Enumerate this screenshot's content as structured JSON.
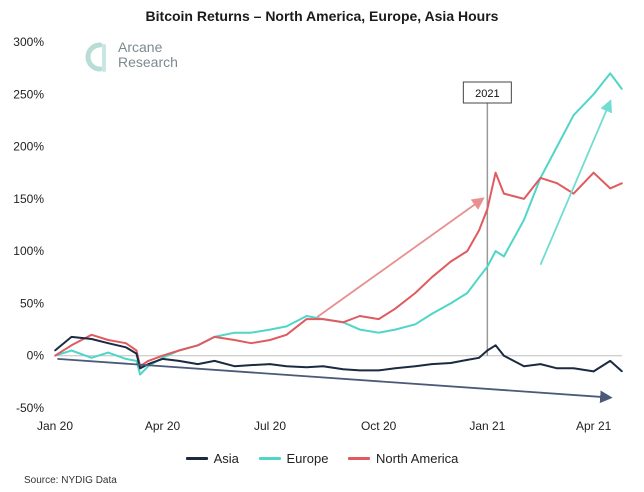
{
  "title": "Bitcoin Returns – North America, Europe, Asia Hours",
  "logo": {
    "line1": "Arcane",
    "line2": "Research"
  },
  "annotation": "2021",
  "source": "Source: NYDIG Data",
  "colors": {
    "asia": "#1b2a41",
    "europe": "#4fd6c8",
    "north_america": "#e05a5f",
    "axis": "#bfbfbf",
    "arrow_gray": "#4a5a78",
    "arrow_red": "#e89090",
    "arrow_teal": "#70dcd2"
  },
  "chart_data": {
    "type": "line",
    "title": "Bitcoin Returns – North America, Europe, Asia Hours",
    "xlabel": "",
    "ylabel": "",
    "ylim": [
      -50,
      300
    ],
    "xlim": [
      "2020-01-01",
      "2021-04-25"
    ],
    "yticks": [
      "300%",
      "250%",
      "200%",
      "150%",
      "100%",
      "50%",
      "0%",
      "-50%"
    ],
    "xticks": [
      "Jan 20",
      "Apr 20",
      "Jul 20",
      "Oct 20",
      "Jan 21",
      "Apr 21"
    ],
    "legend": "bottom",
    "grid": false,
    "series": [
      {
        "name": "Asia",
        "color": "#1b2a41",
        "x": [
          "2020-01-01",
          "2020-01-15",
          "2020-02-01",
          "2020-02-15",
          "2020-03-01",
          "2020-03-10",
          "2020-03-13",
          "2020-03-20",
          "2020-04-01",
          "2020-04-15",
          "2020-05-01",
          "2020-05-15",
          "2020-06-01",
          "2020-06-15",
          "2020-07-01",
          "2020-07-15",
          "2020-08-01",
          "2020-08-15",
          "2020-09-01",
          "2020-09-15",
          "2020-10-01",
          "2020-10-15",
          "2020-11-01",
          "2020-11-15",
          "2020-12-01",
          "2020-12-15",
          "2020-12-25",
          "2021-01-01",
          "2021-01-08",
          "2021-01-15",
          "2021-02-01",
          "2021-02-15",
          "2021-03-01",
          "2021-03-15",
          "2021-04-01",
          "2021-04-15",
          "2021-04-25"
        ],
        "values": [
          5,
          18,
          16,
          12,
          8,
          2,
          -12,
          -8,
          -3,
          -5,
          -8,
          -5,
          -10,
          -9,
          -8,
          -10,
          -11,
          -10,
          -13,
          -14,
          -14,
          -12,
          -10,
          -8,
          -7,
          -4,
          -2,
          5,
          10,
          0,
          -10,
          -8,
          -12,
          -12,
          -15,
          -5,
          -15
        ]
      },
      {
        "name": "Europe",
        "color": "#4fd6c8",
        "x": [
          "2020-01-01",
          "2020-01-15",
          "2020-02-01",
          "2020-02-15",
          "2020-03-01",
          "2020-03-10",
          "2020-03-13",
          "2020-03-20",
          "2020-04-01",
          "2020-04-15",
          "2020-05-01",
          "2020-05-15",
          "2020-06-01",
          "2020-06-15",
          "2020-07-01",
          "2020-07-15",
          "2020-08-01",
          "2020-08-15",
          "2020-09-01",
          "2020-09-15",
          "2020-10-01",
          "2020-10-15",
          "2020-11-01",
          "2020-11-15",
          "2020-12-01",
          "2020-12-15",
          "2020-12-25",
          "2021-01-01",
          "2021-01-08",
          "2021-01-15",
          "2021-02-01",
          "2021-02-15",
          "2021-03-01",
          "2021-03-15",
          "2021-04-01",
          "2021-04-15",
          "2021-04-25"
        ],
        "values": [
          0,
          5,
          -2,
          3,
          -3,
          -5,
          -18,
          -10,
          -2,
          5,
          10,
          18,
          22,
          22,
          25,
          28,
          38,
          35,
          32,
          25,
          22,
          25,
          30,
          40,
          50,
          60,
          75,
          85,
          100,
          95,
          130,
          170,
          200,
          230,
          250,
          270,
          255
        ]
      },
      {
        "name": "North America",
        "color": "#e05a5f",
        "x": [
          "2020-01-01",
          "2020-01-15",
          "2020-02-01",
          "2020-02-15",
          "2020-03-01",
          "2020-03-10",
          "2020-03-13",
          "2020-03-20",
          "2020-04-01",
          "2020-04-15",
          "2020-05-01",
          "2020-05-15",
          "2020-06-01",
          "2020-06-15",
          "2020-07-01",
          "2020-07-15",
          "2020-08-01",
          "2020-08-15",
          "2020-09-01",
          "2020-09-15",
          "2020-10-01",
          "2020-10-15",
          "2020-11-01",
          "2020-11-15",
          "2020-12-01",
          "2020-12-15",
          "2020-12-25",
          "2021-01-01",
          "2021-01-08",
          "2021-01-15",
          "2021-02-01",
          "2021-02-15",
          "2021-03-01",
          "2021-03-15",
          "2021-04-01",
          "2021-04-15",
          "2021-04-25"
        ],
        "values": [
          0,
          10,
          20,
          15,
          12,
          5,
          -10,
          -5,
          0,
          5,
          10,
          18,
          15,
          12,
          15,
          20,
          35,
          35,
          32,
          38,
          35,
          45,
          60,
          75,
          90,
          100,
          120,
          140,
          175,
          155,
          150,
          170,
          165,
          155,
          175,
          160,
          165
        ]
      }
    ]
  }
}
